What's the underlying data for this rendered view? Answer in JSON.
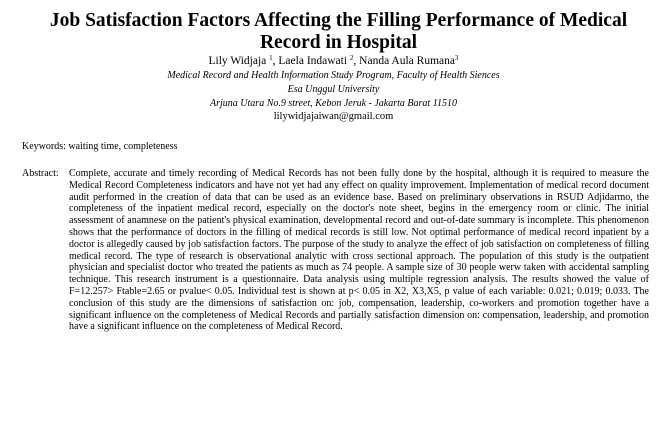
{
  "paper": {
    "title": "Job Satisfaction Factors Affecting the Filling Performance of Medical Record in Hospital",
    "authors": [
      {
        "name": "Lily Widjaja",
        "sup": "1"
      },
      {
        "name": "Laela Indawati",
        "sup": "2"
      },
      {
        "name": "Nanda Aula Rumana",
        "sup": "3"
      }
    ],
    "affiliation_lines": [
      "Medical Record and Health Information Study Program, Faculty of Health Siences",
      "Esa Unggul University",
      "Arjuna Utara No.9 street, Kebon Jeruk - Jakarta Barat 11510"
    ],
    "email": "lilywidjajaiwan@gmail.com",
    "keywords_label": "Keywords:",
    "keywords": "waiting time, completeness",
    "abstract_label": "Abstract:",
    "abstract": "Complete, accurate and timely recording of Medical Records has not been fully done by the hospital, although it is required to measure the Medical Record Completeness indicators  and have not yet had any effect on quality improvement. Implementation of medical record document audit performed in the creation of data that can be used as an evidence base. Based on preliminary observations in RSUD Adjidarmo, the completeness of the inpatient medical record, especially on the doctor's note sheet, begins in the emergency room or clinic. The initial assessment of anamnese on the patient's physical examination, developmental record and out-of-date summary is incomplete. This phenomenon shows that the performance of doctors in the filling of medical records is still low. Not optimal performance of medical record inpatient by a doctor is allegedly caused by job satisfaction factors. The purpose of the study to analyze the effect of job satisfaction on completeness of filling medical record. The type of research is observational analytic with cross sectional approach. The population of this study is the outpatient physician and specialist doctor who treated the patients as much as 74 people. A sample size of 30 people werw taken with accidental sampling technique. This research instrument is a questionnaire. Data analysis using multiple regression analysis. The results showed the value of F=12.257> Ftable=2.65 or pvalue< 0.05. Individual test is shown at p< 0.05 in X2, X3,X5, p value of each variable: 0.021; 0.019; 0.033. The conclusion of this study are the dimensions of satisfaction on: job, compensation, leadership, co-workers and promotion together have a significant influence on the completeness of Medical Records and partially satisfaction dimension on: compensation, leadership, and promotion have a significant influence on the completeness of Medical Record."
  }
}
